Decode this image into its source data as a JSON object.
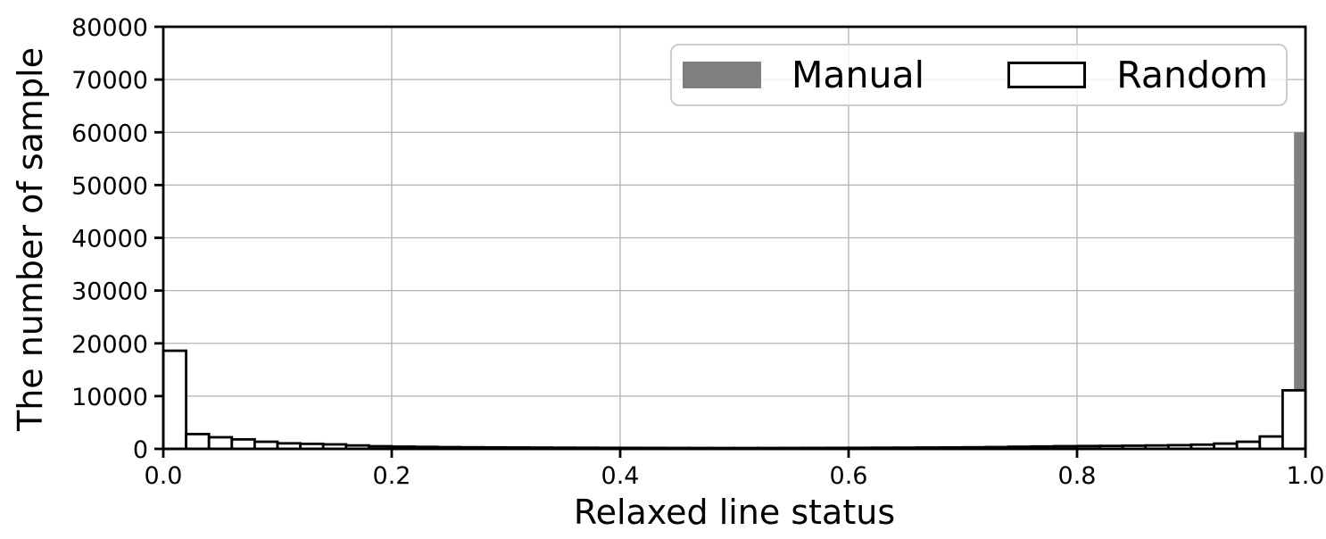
{
  "chart_data": {
    "type": "bar",
    "subtype": "histogram",
    "title": "",
    "xlabel": "Relaxed line status",
    "ylabel": "The number of sample",
    "xlim": [
      0,
      1
    ],
    "ylim": [
      0,
      80000
    ],
    "grid": true,
    "x_ticks": [
      "0.0",
      "0.2",
      "0.4",
      "0.6",
      "0.8",
      "1.0"
    ],
    "x_tick_values": [
      0,
      0.2,
      0.4,
      0.6,
      0.8,
      1.0
    ],
    "y_ticks": [
      "0",
      "10000",
      "20000",
      "30000",
      "40000",
      "50000",
      "60000",
      "70000",
      "80000"
    ],
    "y_tick_values": [
      0,
      10000,
      20000,
      30000,
      40000,
      50000,
      60000,
      70000,
      80000
    ],
    "colors": {
      "manual_fill": "#7f7f7f",
      "random_fill": "#ffffff",
      "random_edge": "#000000",
      "grid": "#b3b3b3",
      "axis": "#000000",
      "legend_border": "#cccccc"
    },
    "legend": {
      "position": "upper right",
      "items": [
        {
          "label": "Manual",
          "fill": "#7f7f7f",
          "edge": "none"
        },
        {
          "label": "Random",
          "fill": "#ffffff",
          "edge": "#000000"
        }
      ]
    },
    "series": [
      {
        "name": "Manual",
        "fill": "#7f7f7f",
        "edge": "none",
        "bins": [
          {
            "x0": 0.7,
            "x1": 0.72,
            "count": 400
          },
          {
            "x0": 0.72,
            "x1": 0.74,
            "count": 500
          },
          {
            "x0": 0.74,
            "x1": 0.76,
            "count": 620
          },
          {
            "x0": 0.76,
            "x1": 0.78,
            "count": 700
          },
          {
            "x0": 0.78,
            "x1": 0.8,
            "count": 760
          },
          {
            "x0": 0.8,
            "x1": 0.82,
            "count": 800
          },
          {
            "x0": 0.82,
            "x1": 0.84,
            "count": 700
          },
          {
            "x0": 0.84,
            "x1": 0.86,
            "count": 600
          },
          {
            "x0": 0.86,
            "x1": 0.88,
            "count": 500
          },
          {
            "x0": 0.88,
            "x1": 0.9,
            "count": 400
          },
          {
            "x0": 0.99,
            "x1": 1.0,
            "count": 60000
          }
        ]
      },
      {
        "name": "Random",
        "fill": "#ffffff",
        "edge": "#000000",
        "bin_start": 0,
        "bin_width": 0.02,
        "counts": [
          18600,
          2800,
          2200,
          1800,
          1350,
          1050,
          950,
          850,
          650,
          500,
          420,
          380,
          330,
          300,
          280,
          260,
          240,
          220,
          210,
          200,
          190,
          180,
          170,
          165,
          160,
          160,
          165,
          170,
          180,
          190,
          200,
          215,
          230,
          250,
          270,
          300,
          340,
          400,
          450,
          500,
          520,
          560,
          600,
          650,
          700,
          800,
          1000,
          1350,
          2350,
          11100
        ]
      }
    ]
  }
}
